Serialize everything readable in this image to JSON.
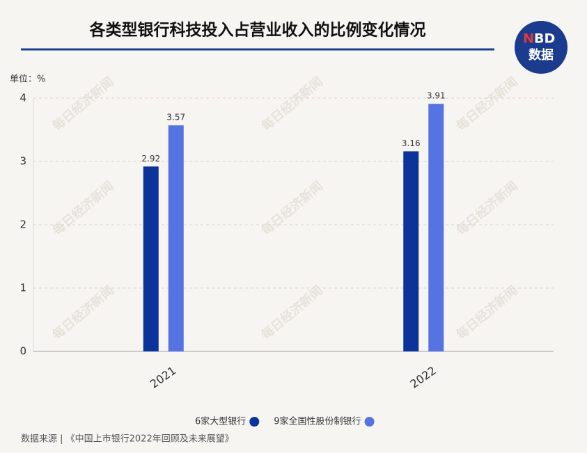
{
  "chart_data": {
    "type": "bar",
    "title": "各类型银行科技投入占营业收入的比例变化情况",
    "unit": "单位：%",
    "source": "数据来源 | 《中国上市银行2022年回顾及未来展望》",
    "logo": {
      "top_left": "N",
      "top_right": "BD",
      "bottom": "数据"
    },
    "watermark": "每日经济新闻",
    "categories": [
      "2021",
      "2022"
    ],
    "series": [
      {
        "name": "6家大型银行",
        "color": "#0c3399",
        "values": [
          2.92,
          3.16
        ]
      },
      {
        "name": "9家全国性股份制银行",
        "color": "#5673e2",
        "values": [
          3.57,
          3.91
        ]
      }
    ],
    "ylim": [
      0,
      4
    ],
    "yticks": [
      0,
      1,
      2,
      3,
      4
    ],
    "grid": true
  }
}
